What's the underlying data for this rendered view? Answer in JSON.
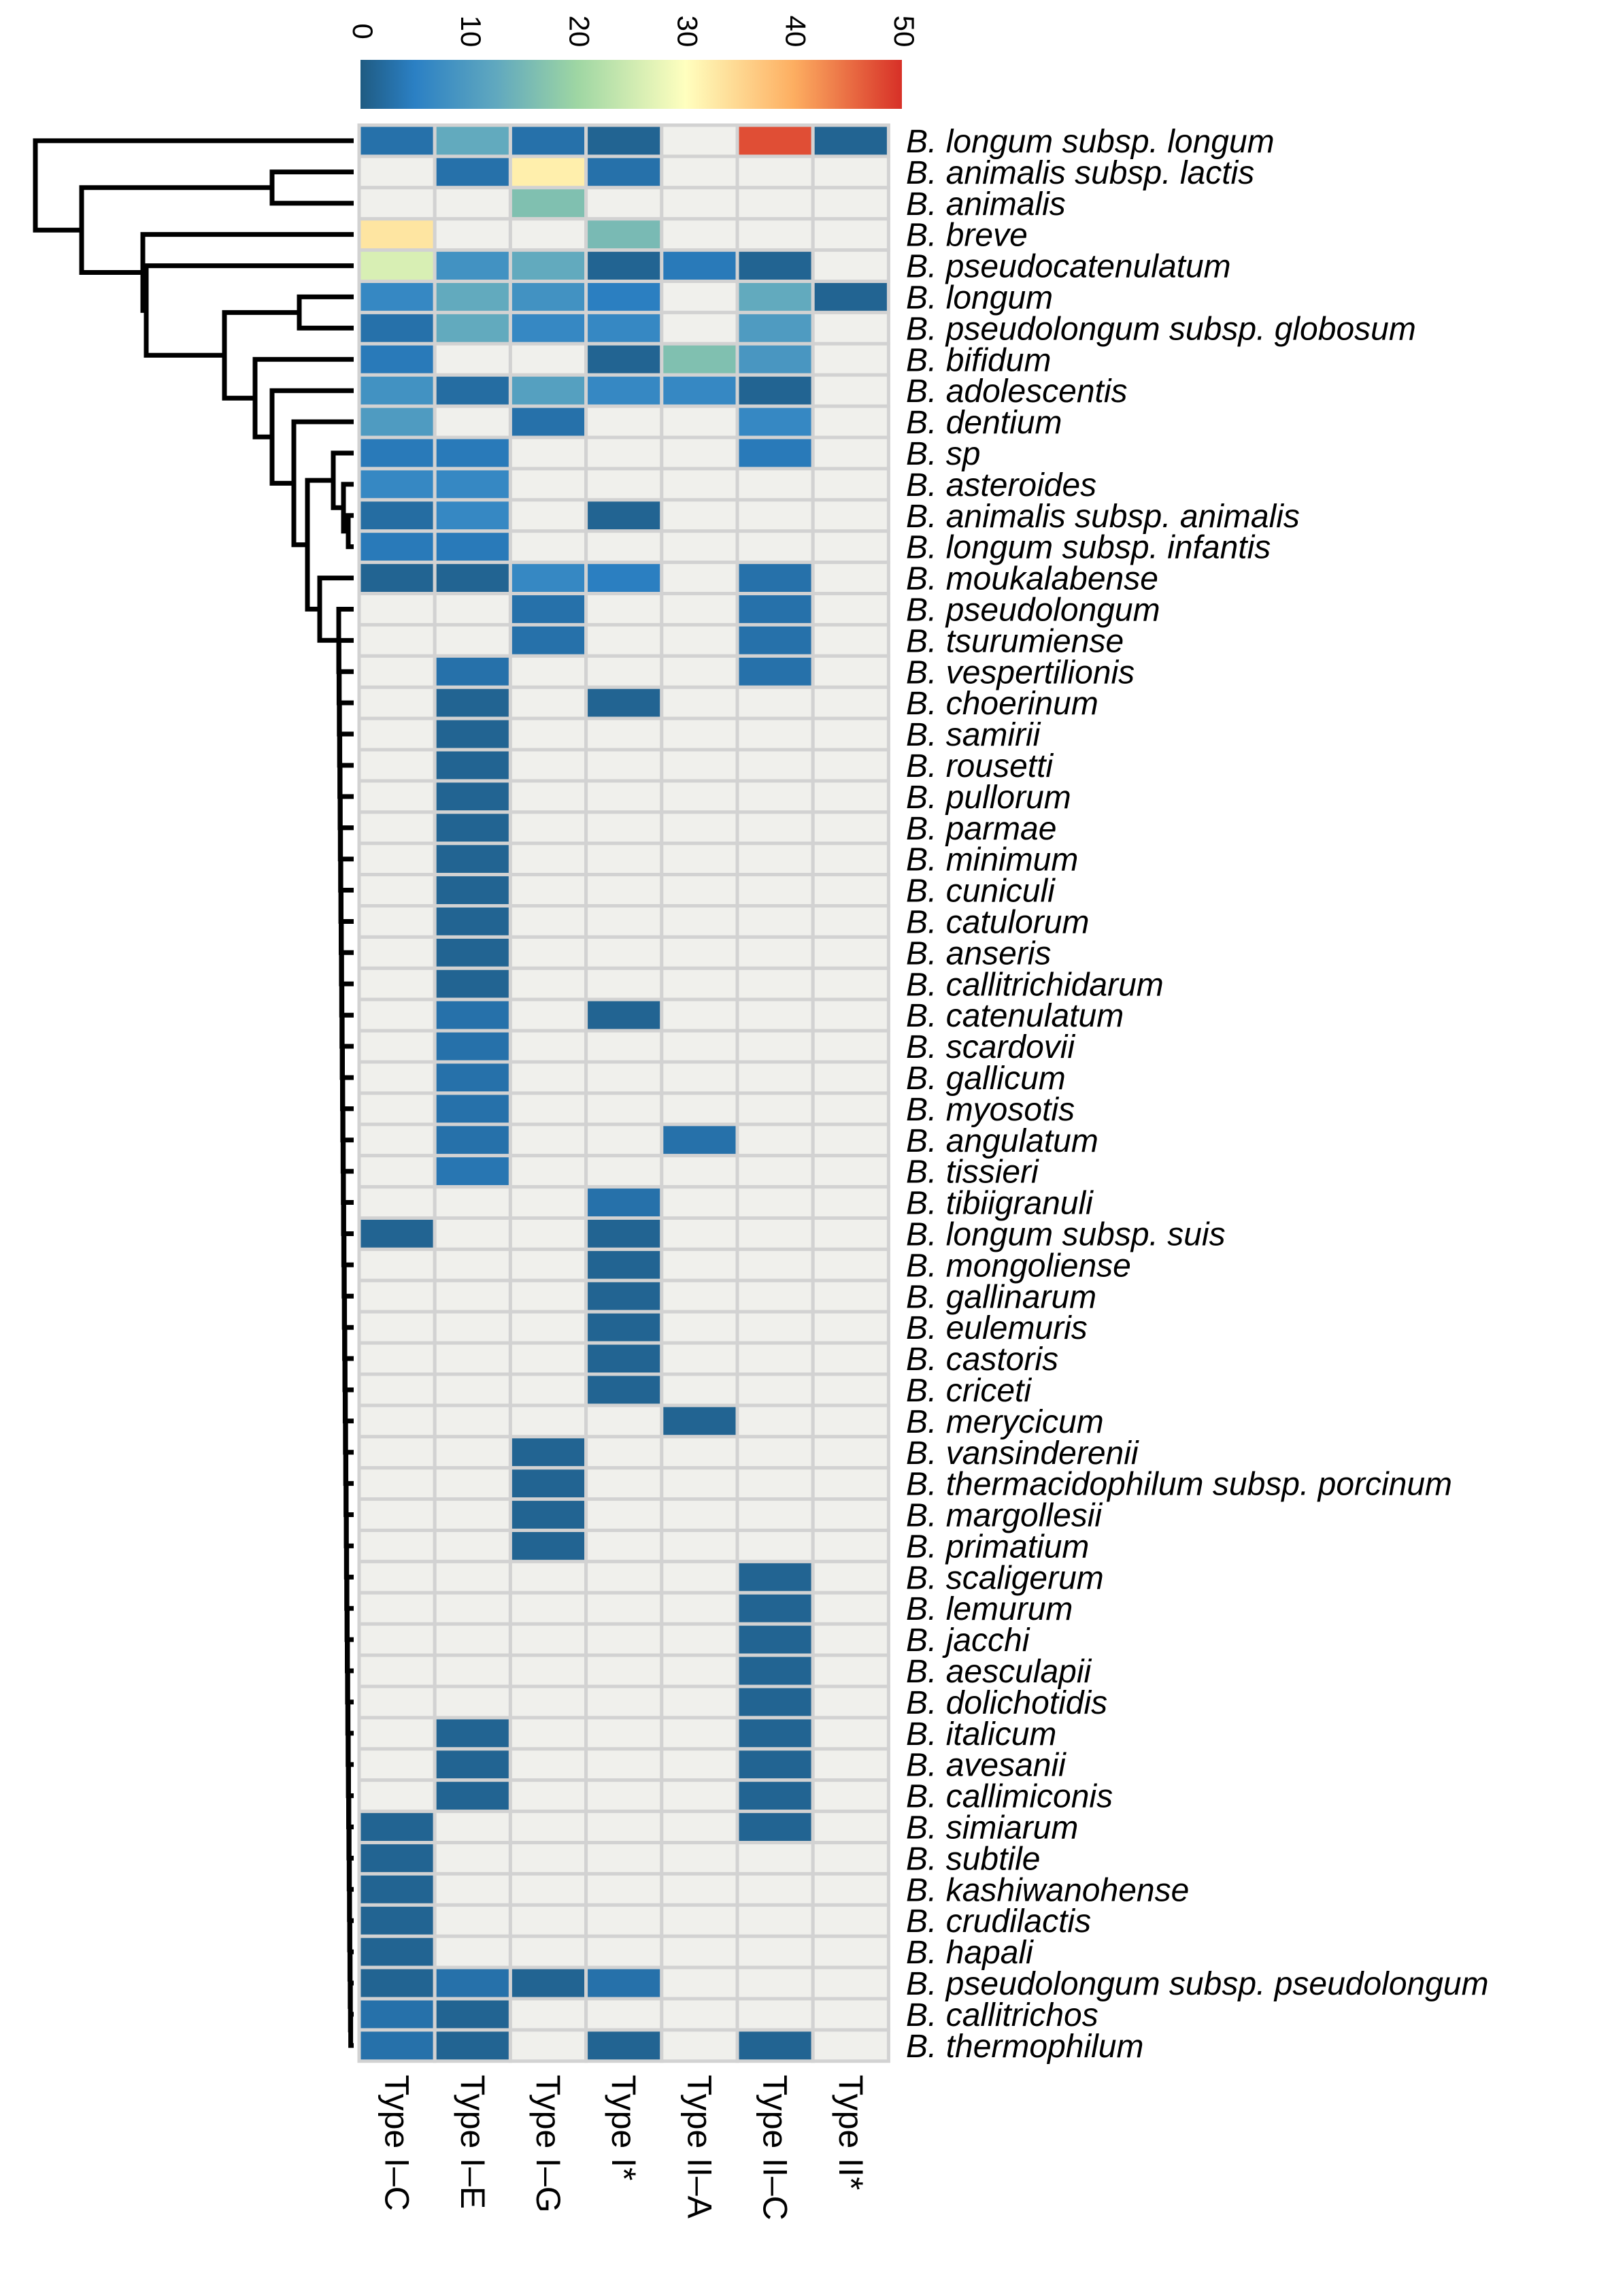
{
  "chart_data": {
    "type": "heatmap",
    "columns": [
      "Type I–C",
      "Type I–E",
      "Type I–G",
      "Type I*",
      "Type II–A",
      "Type II–C",
      "Type II*"
    ],
    "rows": [
      {
        "label": "B. longum subsp. longum",
        "values": [
          5,
          17,
          5,
          2,
          0,
          48,
          2
        ]
      },
      {
        "label": "B. animalis subsp. lactis",
        "values": [
          0,
          5,
          35,
          5,
          0,
          0,
          0
        ]
      },
      {
        "label": "B. animalis",
        "values": [
          0,
          0,
          21,
          0,
          0,
          0,
          0
        ]
      },
      {
        "label": "B. breve",
        "values": [
          36,
          0,
          0,
          20,
          0,
          0,
          0
        ]
      },
      {
        "label": "B. pseudocatenulatum",
        "values": [
          30,
          12,
          17,
          2,
          7,
          2,
          0
        ]
      },
      {
        "label": "B. longum",
        "values": [
          10,
          17,
          12,
          8,
          0,
          17,
          2
        ]
      },
      {
        "label": "B. pseudolongum subsp. globosum",
        "values": [
          5,
          17,
          10,
          10,
          0,
          14,
          0
        ]
      },
      {
        "label": "B. bifidum",
        "values": [
          7,
          0,
          0,
          2,
          21,
          13,
          0
        ]
      },
      {
        "label": "B. adolescentis",
        "values": [
          12,
          4,
          15,
          10,
          10,
          2,
          0
        ]
      },
      {
        "label": "B. dentium",
        "values": [
          14,
          0,
          5,
          0,
          0,
          10,
          0
        ]
      },
      {
        "label": "B. sp",
        "values": [
          7,
          7,
          0,
          0,
          0,
          7,
          0
        ]
      },
      {
        "label": "B. asteroides",
        "values": [
          10,
          10,
          0,
          0,
          0,
          0,
          0
        ]
      },
      {
        "label": "B. animalis subsp. animalis",
        "values": [
          4,
          10,
          0,
          2,
          0,
          0,
          0
        ]
      },
      {
        "label": "B. longum subsp. infantis",
        "values": [
          7,
          7,
          0,
          0,
          0,
          0,
          0
        ]
      },
      {
        "label": "B. moukalabense",
        "values": [
          2,
          2,
          10,
          8,
          0,
          5,
          0
        ]
      },
      {
        "label": "B. pseudolongum",
        "values": [
          0,
          0,
          5,
          0,
          0,
          5,
          0
        ]
      },
      {
        "label": "B. tsurumiense",
        "values": [
          0,
          0,
          5,
          0,
          0,
          5,
          0
        ]
      },
      {
        "label": "B. vespertilionis",
        "values": [
          0,
          5,
          0,
          0,
          0,
          5,
          0
        ]
      },
      {
        "label": "B. choerinum",
        "values": [
          0,
          2,
          0,
          2,
          0,
          0,
          0
        ]
      },
      {
        "label": "B. samirii",
        "values": [
          0,
          2,
          0,
          0,
          0,
          0,
          0
        ]
      },
      {
        "label": "B. rousetti",
        "values": [
          0,
          2,
          0,
          0,
          0,
          0,
          0
        ]
      },
      {
        "label": "B. pullorum",
        "values": [
          0,
          2,
          0,
          0,
          0,
          0,
          0
        ]
      },
      {
        "label": "B. parmae",
        "values": [
          0,
          2,
          0,
          0,
          0,
          0,
          0
        ]
      },
      {
        "label": "B. minimum",
        "values": [
          0,
          2,
          0,
          0,
          0,
          0,
          0
        ]
      },
      {
        "label": "B. cuniculi",
        "values": [
          0,
          2,
          0,
          0,
          0,
          0,
          0
        ]
      },
      {
        "label": "B. catulorum",
        "values": [
          0,
          2,
          0,
          0,
          0,
          0,
          0
        ]
      },
      {
        "label": "B. anseris",
        "values": [
          0,
          2,
          0,
          0,
          0,
          0,
          0
        ]
      },
      {
        "label": "B. callitrichidarum",
        "values": [
          0,
          2,
          0,
          0,
          0,
          0,
          0
        ]
      },
      {
        "label": "B. catenulatum",
        "values": [
          0,
          5,
          0,
          2,
          0,
          0,
          0
        ]
      },
      {
        "label": "B. scardovii",
        "values": [
          0,
          5,
          0,
          0,
          0,
          0,
          0
        ]
      },
      {
        "label": "B. gallicum",
        "values": [
          0,
          5,
          0,
          0,
          0,
          0,
          0
        ]
      },
      {
        "label": "B. myosotis",
        "values": [
          0,
          5,
          0,
          0,
          0,
          0,
          0
        ]
      },
      {
        "label": "B. angulatum",
        "values": [
          0,
          5,
          0,
          0,
          5,
          0,
          0
        ]
      },
      {
        "label": "B. tissieri",
        "values": [
          0,
          6,
          0,
          0,
          0,
          0,
          0
        ]
      },
      {
        "label": "B. tibiigranuli",
        "values": [
          0,
          0,
          0,
          5,
          0,
          0,
          0
        ]
      },
      {
        "label": "B. longum subsp. suis",
        "values": [
          2,
          0,
          0,
          2,
          0,
          0,
          0
        ]
      },
      {
        "label": "B. mongoliense",
        "values": [
          0,
          0,
          0,
          2,
          0,
          0,
          0
        ]
      },
      {
        "label": "B. gallinarum",
        "values": [
          0,
          0,
          0,
          2,
          0,
          0,
          0
        ]
      },
      {
        "label": "B. eulemuris",
        "values": [
          0,
          0,
          0,
          2,
          0,
          0,
          0
        ]
      },
      {
        "label": "B. castoris",
        "values": [
          0,
          0,
          0,
          2,
          0,
          0,
          0
        ]
      },
      {
        "label": "B. criceti",
        "values": [
          0,
          0,
          0,
          2,
          0,
          0,
          0
        ]
      },
      {
        "label": "B. merycicum",
        "values": [
          0,
          0,
          0,
          0,
          2,
          0,
          0
        ]
      },
      {
        "label": "B. vansinderenii",
        "values": [
          0,
          0,
          2,
          0,
          0,
          0,
          0
        ]
      },
      {
        "label": "B. thermacidophilum subsp. porcinum",
        "values": [
          0,
          0,
          2,
          0,
          0,
          0,
          0
        ]
      },
      {
        "label": "B. margollesii",
        "values": [
          0,
          0,
          2,
          0,
          0,
          0,
          0
        ]
      },
      {
        "label": "B. primatium",
        "values": [
          0,
          0,
          2,
          0,
          0,
          0,
          0
        ]
      },
      {
        "label": "B. scaligerum",
        "values": [
          0,
          0,
          0,
          0,
          0,
          2,
          0
        ]
      },
      {
        "label": "B. lemurum",
        "values": [
          0,
          0,
          0,
          0,
          0,
          2,
          0
        ]
      },
      {
        "label": "B. jacchi",
        "values": [
          0,
          0,
          0,
          0,
          0,
          2,
          0
        ]
      },
      {
        "label": "B. aesculapii",
        "values": [
          0,
          0,
          0,
          0,
          0,
          2,
          0
        ]
      },
      {
        "label": "B. dolichotidis",
        "values": [
          0,
          0,
          0,
          0,
          0,
          2,
          0
        ]
      },
      {
        "label": "B. italicum",
        "values": [
          0,
          2,
          0,
          0,
          0,
          2,
          0
        ]
      },
      {
        "label": "B. avesanii",
        "values": [
          0,
          2,
          0,
          0,
          0,
          2,
          0
        ]
      },
      {
        "label": "B. callimiconis",
        "values": [
          0,
          2,
          0,
          0,
          0,
          2,
          0
        ]
      },
      {
        "label": "B. simiarum",
        "values": [
          2,
          0,
          0,
          0,
          0,
          2,
          0
        ]
      },
      {
        "label": "B. subtile",
        "values": [
          2,
          0,
          0,
          0,
          0,
          0,
          0
        ]
      },
      {
        "label": "B. kashiwanohense",
        "values": [
          2,
          0,
          0,
          0,
          0,
          0,
          0
        ]
      },
      {
        "label": "B. crudilactis",
        "values": [
          2,
          0,
          0,
          0,
          0,
          0,
          0
        ]
      },
      {
        "label": "B. hapali",
        "values": [
          2,
          0,
          0,
          0,
          0,
          0,
          0
        ]
      },
      {
        "label": "B. pseudolongum subsp. pseudolongum",
        "values": [
          2,
          5,
          2,
          5,
          0,
          0,
          0
        ]
      },
      {
        "label": "B. callitrichos",
        "values": [
          5,
          2,
          0,
          0,
          0,
          0,
          0
        ]
      },
      {
        "label": "B. thermophilum",
        "values": [
          5,
          2,
          0,
          2,
          0,
          2,
          0
        ]
      }
    ],
    "colorbar": {
      "ticks": [
        0,
        10,
        20,
        30,
        40,
        50
      ],
      "range": [
        0,
        50
      ],
      "colors": [
        "#1f5b82",
        "#2b80c4",
        "#60a8bf",
        "#9ed6a3",
        "#ffffbf",
        "#fdae61",
        "#d73027"
      ]
    },
    "zero_color": "#f0f0ec",
    "grid_color": "#d2d2d2",
    "dendrogram": true
  }
}
